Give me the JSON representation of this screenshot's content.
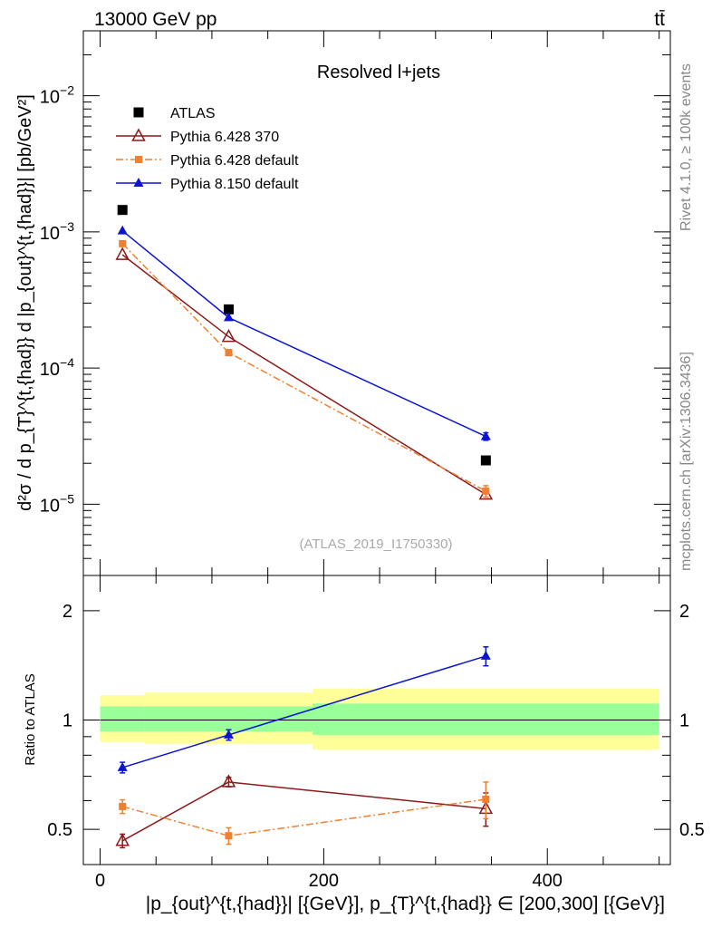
{
  "header": {
    "left": "13000 GeV pp",
    "right": "tt̄"
  },
  "side_labels": {
    "upper": "Rivet 4.1.0, ≥ 100k events",
    "lower": "mcplots.cern.ch [arXiv:1306.3436]"
  },
  "chart_data": [
    {
      "type": "scatter",
      "panel": "main",
      "title": "Resolved l+jets",
      "watermark": "(ATLAS_2019_I1750330)",
      "ylabel": "d²σ / d p_{T}^{t,{had}} d |p_{out}^{t,{had}}| [pb/GeV²]",
      "yscale": "log",
      "ylim": [
        3e-06,
        0.03
      ],
      "y_ticks": [
        1e-05,
        0.0001,
        0.001,
        0.01
      ],
      "y_tick_labels": [
        {
          "base": "10",
          "exp": "−5"
        },
        {
          "base": "10",
          "exp": "−4"
        },
        {
          "base": "10",
          "exp": "−3"
        },
        {
          "base": "10",
          "exp": "−2"
        }
      ],
      "xlim": [
        -15,
        510
      ],
      "x": [
        20,
        115,
        345
      ],
      "series": [
        {
          "name": "ATLAS",
          "color": "#000000",
          "marker": "square",
          "line": "none",
          "values": [
            0.00145,
            0.00027,
            2.1e-05
          ],
          "err": [
            0,
            0,
            0
          ]
        },
        {
          "name": "Pythia 6.428 370",
          "color": "#8b1a1a",
          "marker": "triangle-open",
          "line": "solid",
          "values": [
            0.00068,
            0.00017,
            1.18e-05
          ],
          "err": [
            0,
            0,
            0
          ]
        },
        {
          "name": "Pythia 6.428 default",
          "color": "#f08030",
          "marker": "square-small",
          "line": "dashdot",
          "values": [
            0.00082,
            0.00013,
            1.25e-05
          ],
          "err": [
            0,
            0,
            1.2e-06
          ]
        },
        {
          "name": "Pythia 8.150 default",
          "color": "#0a14d2",
          "marker": "triangle",
          "line": "solid",
          "values": [
            0.00102,
            0.000235,
            3.15e-05
          ],
          "err": [
            0,
            0,
            2e-06
          ]
        }
      ]
    },
    {
      "type": "scatter",
      "panel": "ratio",
      "ylabel": "Ratio to ATLAS",
      "xlabel": "|p_{out}^{t,{had}}| [{GeV}], p_{T}^{t,{had}} ∈ [200,300] [{GeV}]",
      "yscale": "log",
      "ylim": [
        0.4,
        2.5
      ],
      "y_ticks": [
        0.5,
        1,
        2
      ],
      "y_tick_labels": [
        "0.5",
        "1",
        "2"
      ],
      "x_ticks": [
        0,
        200,
        400
      ],
      "x_tick_labels": [
        "0",
        "200",
        "400"
      ],
      "xlim": [
        -15,
        510
      ],
      "bands": [
        {
          "x0": 0,
          "x1": 40,
          "yellow": [
            0.87,
            1.17
          ],
          "green": [
            0.93,
            1.09
          ]
        },
        {
          "x0": 40,
          "x1": 190,
          "yellow": [
            0.86,
            1.19
          ],
          "green": [
            0.93,
            1.09
          ]
        },
        {
          "x0": 190,
          "x1": 500,
          "yellow": [
            0.83,
            1.22
          ],
          "green": [
            0.91,
            1.11
          ]
        }
      ],
      "x": [
        20,
        115,
        345
      ],
      "series": [
        {
          "name": "Pythia 6.428 370",
          "color": "#8b1a1a",
          "marker": "triangle-open",
          "line": "solid",
          "values": [
            0.465,
            0.675,
            0.57
          ],
          "err": [
            0.02,
            0.02,
            0.06
          ]
        },
        {
          "name": "Pythia 6.428 default",
          "color": "#f08030",
          "marker": "square-small",
          "line": "dashdot",
          "values": [
            0.578,
            0.48,
            0.605
          ],
          "err": [
            0.025,
            0.025,
            0.07
          ]
        },
        {
          "name": "Pythia 8.150 default",
          "color": "#0a14d2",
          "marker": "triangle",
          "line": "solid",
          "values": [
            0.74,
            0.91,
            1.5
          ],
          "err": [
            0.025,
            0.03,
            0.09
          ]
        }
      ]
    }
  ]
}
